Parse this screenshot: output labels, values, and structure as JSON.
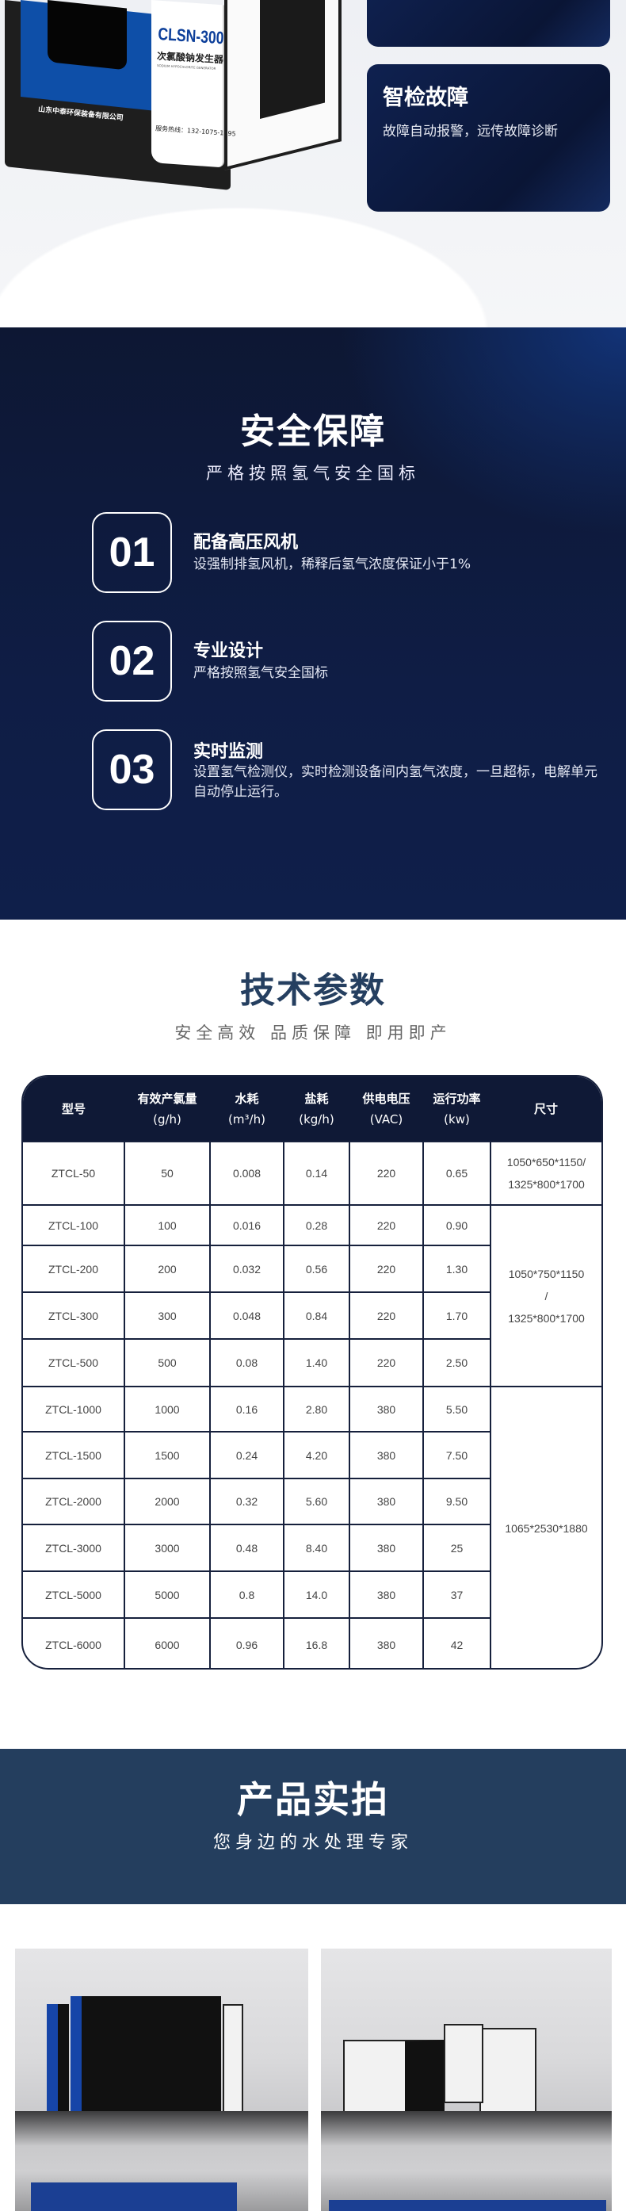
{
  "features": {
    "card2": {
      "title": "智检故障",
      "desc": "故障自动报警，远传故障诊断"
    }
  },
  "machine": {
    "model": "CLSN-300",
    "name": "次氯酸钠发生器",
    "name_en": "SODIUM HYPOCHLORITE GENERATOR",
    "company": "山东中泰环保装备有限公司",
    "hotline": "服务热线：132-1075-1895"
  },
  "safety": {
    "title": "安全保障",
    "subtitle": "严格按照氢气安全国标",
    "items": [
      {
        "num": "01",
        "title": "配备高压风机",
        "desc": "设强制排氢风机，稀释后氢气浓度保证小于1%"
      },
      {
        "num": "02",
        "title": "专业设计",
        "desc": "严格按照氢气安全国标"
      },
      {
        "num": "03",
        "title": "实时监测",
        "desc": "设置氢气检测仪，实时检测设备间内氢气浓度，一旦超标，电解单元自动停止运行。"
      }
    ]
  },
  "params": {
    "title": "技术参数",
    "subtitle": "安全高效  品质保障  即用即产",
    "headers": [
      [
        "型号",
        ""
      ],
      [
        "有效产氯量",
        "(g/h)"
      ],
      [
        "水耗",
        "(m³/h)"
      ],
      [
        "盐耗",
        "(kg/h)"
      ],
      [
        "供电电压",
        "(VAC)"
      ],
      [
        "运行功率",
        "(kw)"
      ],
      [
        "尺寸",
        ""
      ]
    ],
    "rows": [
      [
        "ZTCL-50",
        "50",
        "0.008",
        "0.14",
        "220",
        "0.65"
      ],
      [
        "ZTCL-100",
        "100",
        "0.016",
        "0.28",
        "220",
        "0.90"
      ],
      [
        "ZTCL-200",
        "200",
        "0.032",
        "0.56",
        "220",
        "1.30"
      ],
      [
        "ZTCL-300",
        "300",
        "0.048",
        "0.84",
        "220",
        "1.70"
      ],
      [
        "ZTCL-500",
        "500",
        "0.08",
        "1.40",
        "220",
        "2.50"
      ],
      [
        "ZTCL-1000",
        "1000",
        "0.16",
        "2.80",
        "380",
        "5.50"
      ],
      [
        "ZTCL-1500",
        "1500",
        "0.24",
        "4.20",
        "380",
        "7.50"
      ],
      [
        "ZTCL-2000",
        "2000",
        "0.32",
        "5.60",
        "380",
        "9.50"
      ],
      [
        "ZTCL-3000",
        "3000",
        "0.48",
        "8.40",
        "380",
        "25"
      ],
      [
        "ZTCL-5000",
        "5000",
        "0.8",
        "14.0",
        "380",
        "37"
      ],
      [
        "ZTCL-6000",
        "6000",
        "0.96",
        "16.8",
        "380",
        "42"
      ]
    ],
    "size_groups": [
      {
        "lines": [
          "1050*650*1150/",
          "1325*800*1700"
        ],
        "rows": 1
      },
      {
        "lines": [
          "1050*750*1150",
          "/",
          "1325*800*1700"
        ],
        "rows": 4
      },
      {
        "lines": [
          "1065*2530*1880"
        ],
        "rows": 6
      }
    ]
  },
  "products": {
    "title": "产品实拍",
    "subtitle": "您身边的水处理专家"
  }
}
